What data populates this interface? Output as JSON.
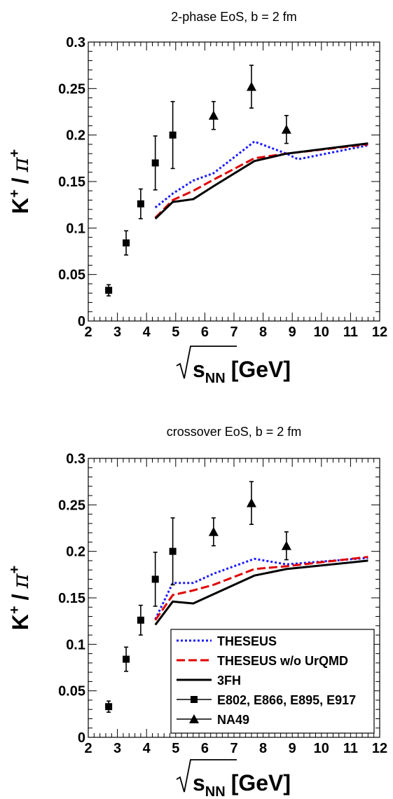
{
  "chart_data": [
    {
      "type": "line",
      "title": "2-phase EoS, b = 2 fm",
      "xlabel": "s_NN [GeV]",
      "xlabel_main": "s",
      "xlabel_sub": "NN",
      "xlabel_unit": "[GeV]",
      "ylabel": "K+ / π+",
      "ylabel_k": "K",
      "ylabel_sup1": "+",
      "ylabel_slash": "/",
      "ylabel_pi": "π",
      "ylabel_sup2": "+",
      "xlim": [
        2,
        12
      ],
      "ylim": [
        0,
        0.3
      ],
      "x_ticks": [
        "2",
        "3",
        "4",
        "5",
        "6",
        "7",
        "8",
        "9",
        "10",
        "11",
        "12"
      ],
      "y_ticks": [
        "0",
        "0.05",
        "0.1",
        "0.15",
        "0.2",
        "0.25",
        "0.3"
      ],
      "legend": null,
      "series": [
        {
          "name": "THESEUS",
          "kind": "line",
          "color": "#1a1aff",
          "dash": "3,3",
          "x": [
            4.3,
            4.9,
            5.6,
            6.3,
            7.7,
            8.8,
            9.2,
            11.6
          ],
          "y": [
            0.122,
            0.137,
            0.151,
            0.159,
            0.193,
            0.18,
            0.174,
            0.189
          ]
        },
        {
          "name": "THESEUS w/o UrQMD",
          "kind": "line",
          "color": "#e00000",
          "dash": "12,5",
          "x": [
            4.3,
            4.9,
            5.6,
            6.3,
            7.7,
            8.8,
            11.6
          ],
          "y": [
            0.111,
            0.13,
            0.14,
            0.152,
            0.175,
            0.18,
            0.19
          ]
        },
        {
          "name": "3FH",
          "kind": "line",
          "color": "#000000",
          "dash": "",
          "x": [
            4.3,
            4.9,
            5.6,
            6.3,
            7.7,
            8.8,
            11.6
          ],
          "y": [
            0.11,
            0.128,
            0.131,
            0.145,
            0.172,
            0.18,
            0.191
          ]
        },
        {
          "name": "E802, E866, E895, E917",
          "kind": "marker",
          "marker": "square",
          "color": "#000000",
          "x": [
            2.7,
            3.3,
            3.8,
            4.3,
            4.9
          ],
          "y": [
            0.033,
            0.084,
            0.126,
            0.17,
            0.2
          ],
          "err": [
            0.006,
            0.013,
            0.016,
            0.029,
            0.036
          ]
        },
        {
          "name": "NA49",
          "kind": "marker",
          "marker": "triangle",
          "color": "#000000",
          "x": [
            6.3,
            7.6,
            8.8
          ],
          "y": [
            0.221,
            0.252,
            0.206
          ],
          "err": [
            0.015,
            0.023,
            0.015
          ]
        }
      ]
    },
    {
      "type": "line",
      "title": "crossover EoS, b = 2 fm",
      "xlabel": "s_NN [GeV]",
      "xlabel_main": "s",
      "xlabel_sub": "NN",
      "xlabel_unit": "[GeV]",
      "ylabel": "K+ / π+",
      "ylabel_k": "K",
      "ylabel_sup1": "+",
      "ylabel_slash": "/",
      "ylabel_pi": "π",
      "ylabel_sup2": "+",
      "xlim": [
        2,
        12
      ],
      "ylim": [
        0,
        0.3
      ],
      "x_ticks": [
        "2",
        "3",
        "4",
        "5",
        "6",
        "7",
        "8",
        "9",
        "10",
        "11",
        "12"
      ],
      "y_ticks": [
        "0",
        "0.05",
        "0.1",
        "0.15",
        "0.2",
        "0.25",
        "0.3"
      ],
      "legend": "bottom-right",
      "series": [
        {
          "name": "THESEUS",
          "kind": "line",
          "color": "#1a1aff",
          "dash": "3,3",
          "x": [
            4.3,
            4.9,
            5.6,
            6.3,
            7.7,
            8.8,
            11.6
          ],
          "y": [
            0.127,
            0.166,
            0.166,
            0.176,
            0.192,
            0.186,
            0.193
          ]
        },
        {
          "name": "THESEUS w/o UrQMD",
          "kind": "line",
          "color": "#e00000",
          "dash": "12,5",
          "x": [
            4.3,
            4.9,
            5.6,
            6.3,
            7.7,
            8.8,
            11.6
          ],
          "y": [
            0.126,
            0.153,
            0.158,
            0.164,
            0.181,
            0.184,
            0.194
          ]
        },
        {
          "name": "3FH",
          "kind": "line",
          "color": "#000000",
          "dash": "",
          "x": [
            4.3,
            4.9,
            5.6,
            6.3,
            7.7,
            8.8,
            11.6
          ],
          "y": [
            0.121,
            0.146,
            0.144,
            0.154,
            0.174,
            0.181,
            0.19
          ]
        },
        {
          "name": "E802, E866, E895, E917",
          "kind": "marker",
          "marker": "square",
          "color": "#000000",
          "x": [
            2.7,
            3.3,
            3.8,
            4.3,
            4.9
          ],
          "y": [
            0.033,
            0.084,
            0.126,
            0.17,
            0.2
          ],
          "err": [
            0.006,
            0.013,
            0.016,
            0.029,
            0.036
          ]
        },
        {
          "name": "NA49",
          "kind": "marker",
          "marker": "triangle",
          "color": "#000000",
          "x": [
            6.3,
            7.6,
            8.8
          ],
          "y": [
            0.221,
            0.252,
            0.206
          ],
          "err": [
            0.015,
            0.023,
            0.015
          ]
        }
      ]
    }
  ]
}
